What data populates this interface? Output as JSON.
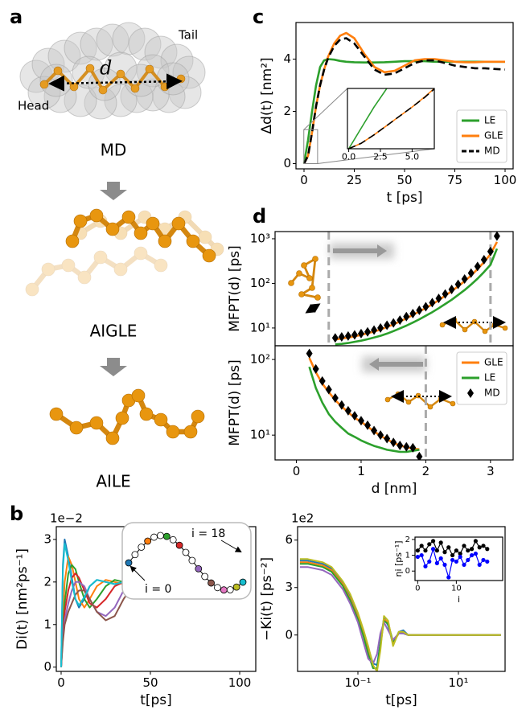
{
  "panel_labels": [
    "a",
    "b",
    "c",
    "d"
  ],
  "illustration": {
    "distance": "d",
    "tail": "Tail",
    "head": "Head",
    "stages": [
      "MD",
      "AIGLE",
      "AILE"
    ]
  },
  "chart_data": [
    {
      "type": "line",
      "xlabel": "t [ps]",
      "ylabel": "Δd(t) [nm²]",
      "x": [
        0,
        2,
        4,
        6,
        8,
        10,
        12,
        15,
        18,
        21,
        25,
        30,
        35,
        40,
        45,
        50,
        55,
        60,
        65,
        70,
        75,
        80,
        85,
        90,
        95,
        100
      ],
      "series": [
        {
          "name": "LE",
          "color": "#2ca02c",
          "values": [
            0,
            0.9,
            2.0,
            3.0,
            3.7,
            3.95,
            4.0,
            3.98,
            3.93,
            3.9,
            3.88,
            3.87,
            3.87,
            3.88,
            3.9,
            3.92,
            3.92,
            3.92,
            3.9,
            3.9,
            3.9,
            3.9,
            3.9,
            3.9,
            3.9,
            3.9
          ]
        },
        {
          "name": "GLE",
          "color": "#ff7f0e",
          "values": [
            0,
            0.3,
            1.2,
            2.2,
            3.0,
            3.6,
            4.1,
            4.6,
            4.9,
            5.0,
            4.8,
            4.2,
            3.7,
            3.5,
            3.55,
            3.75,
            3.95,
            4.0,
            4.0,
            3.95,
            3.9,
            3.88,
            3.88,
            3.9,
            3.9,
            3.9
          ]
        },
        {
          "name": "MD",
          "color": "#000000",
          "linestyle": "dashed",
          "values": [
            0,
            0.3,
            1.2,
            2.2,
            3.0,
            3.6,
            4.05,
            4.5,
            4.75,
            4.8,
            4.6,
            4.1,
            3.6,
            3.4,
            3.45,
            3.65,
            3.85,
            3.95,
            3.95,
            3.85,
            3.75,
            3.7,
            3.65,
            3.65,
            3.62,
            3.6
          ]
        }
      ],
      "xlim": [
        -4,
        104
      ],
      "ylim": [
        -0.2,
        5.4
      ],
      "xticks": [
        0,
        25,
        50,
        75,
        100
      ],
      "yticks": [
        0,
        2,
        4
      ],
      "legend": "lower right"
    },
    {
      "type": "line",
      "x": [
        0,
        1,
        2,
        3,
        4,
        5,
        6,
        6.75
      ],
      "series": [
        {
          "color": "#2ca02c",
          "values": [
            0,
            0.45,
            0.9,
            1.3,
            null,
            null,
            null,
            null
          ]
        },
        {
          "color": "#ff7f0e",
          "values": [
            0,
            0.12,
            0.3,
            0.5,
            0.7,
            0.9,
            1.12,
            1.3
          ]
        },
        {
          "color": "#000000",
          "linestyle": "dashed",
          "values": [
            0,
            0.12,
            0.3,
            0.5,
            0.7,
            0.9,
            1.11,
            1.29
          ]
        }
      ],
      "xlim": [
        -0.1,
        6.75
      ],
      "ylim": [
        0,
        1.3
      ],
      "xticks": [
        {
          "value": 0,
          "label": "0.0"
        },
        {
          "value": 2.5,
          "label": "2.5"
        },
        {
          "value": 5,
          "label": "5.0"
        }
      ]
    },
    {
      "type": "line",
      "ylabel": "MFPT(d) [ps]",
      "x": [
        0.6,
        0.7,
        0.8,
        0.9,
        1.0,
        1.1,
        1.2,
        1.3,
        1.4,
        1.5,
        1.6,
        1.7,
        1.8,
        1.9,
        2.0,
        2.1,
        2.2,
        2.3,
        2.4,
        2.5,
        2.6,
        2.7,
        2.8,
        2.9,
        3.0,
        3.1
      ],
      "series": [
        {
          "color": "#ff7f0e",
          "values": [
            5.5,
            5.8,
            6.1,
            6.5,
            7,
            7.6,
            8.3,
            9.2,
            10.5,
            12,
            14,
            16.5,
            19.5,
            23.5,
            28,
            34,
            42,
            53,
            67,
            86,
            112,
            150,
            210,
            300,
            450,
            850
          ]
        },
        {
          "color": "#2ca02c",
          "values": [
            4.3,
            4.4,
            4.6,
            4.9,
            5.2,
            5.6,
            6.1,
            6.7,
            7.5,
            8.5,
            9.8,
            11.3,
            13.2,
            15.7,
            18.8,
            22.7,
            27.8,
            34.5,
            43,
            55,
            71,
            94,
            128,
            180,
            260,
            600
          ]
        },
        {
          "color": "#000000",
          "marker": "diamond",
          "values": [
            6,
            6.3,
            6.6,
            7,
            7.5,
            8.2,
            9,
            10,
            11.5,
            13,
            15,
            18,
            21,
            25,
            30,
            37,
            46,
            58,
            73,
            95,
            125,
            170,
            240,
            340,
            520,
            1150
          ]
        }
      ],
      "xlim": [
        -0.33,
        3.35
      ],
      "ylim": [
        4,
        1450
      ],
      "yscale": "log",
      "yticks": [
        {
          "value": 10,
          "label": "10¹"
        },
        {
          "value": 100,
          "label": "10²"
        },
        {
          "value": 1000,
          "label": "10³"
        }
      ],
      "vlines": [
        0.5,
        3
      ]
    },
    {
      "type": "line",
      "xlabel": "d [nm]",
      "ylabel": "MFPT(d) [ps]",
      "x": [
        0.2,
        0.3,
        0.4,
        0.5,
        0.6,
        0.7,
        0.8,
        0.9,
        1.0,
        1.1,
        1.2,
        1.3,
        1.4,
        1.5,
        1.6,
        1.7,
        1.8,
        1.9
      ],
      "series": [
        {
          "name": "GLE",
          "color": "#ff7f0e",
          "values": [
            105,
            68,
            48,
            37,
            29,
            24,
            20,
            17,
            15,
            13,
            11.2,
            9.8,
            8.8,
            7.9,
            7.3,
            6.9,
            6.6,
            6.5
          ]
        },
        {
          "name": "LE",
          "color": "#2ca02c",
          "values": [
            80,
            42,
            27,
            19,
            15,
            12.5,
            10.5,
            9.5,
            8.5,
            7.8,
            7.2,
            6.8,
            6.4,
            6.2,
            6.0,
            6.0,
            6.2,
            6.4
          ]
        },
        {
          "name": "MD",
          "color": "#000000",
          "marker": "diamond",
          "values": [
            120,
            75,
            52,
            40,
            31,
            25,
            21,
            18,
            15.5,
            13.5,
            11.5,
            10,
            9,
            8,
            7.3,
            7,
            6.8,
            5.2
          ]
        }
      ],
      "xlim": [
        -0.33,
        3.35
      ],
      "ylim": [
        4.7,
        152
      ],
      "yscale": "log",
      "xticks": [
        0,
        1,
        2,
        3
      ],
      "yticks": [
        {
          "value": 10,
          "label": "10¹"
        },
        {
          "value": 100,
          "label": "10²"
        }
      ],
      "vlines": [
        2
      ],
      "legend": "upper right"
    },
    {
      "type": "line",
      "xlabel": "t[ps]",
      "ylabel": "Di(t) [nm²ps⁻¹]",
      "offset_label": "1e−2",
      "x": [
        0,
        1,
        2,
        4,
        6,
        8,
        10,
        13,
        16,
        20,
        25,
        30,
        35,
        40,
        45,
        50,
        55,
        60,
        70,
        80,
        90,
        100
      ],
      "series": [
        {
          "color": "#1f77b4",
          "values": [
            0,
            2.4,
            3.0,
            2.6,
            2.1,
            1.6,
            1.4,
            1.6,
            1.9,
            2.05,
            2.0,
            1.95,
            2.0,
            2.1,
            2.15,
            2.15,
            2.1,
            2.0,
            2.0,
            2.0,
            2.05,
            2.0
          ]
        },
        {
          "color": "#ff7f0e",
          "values": [
            0,
            1.2,
            2.0,
            2.6,
            2.4,
            2.0,
            1.6,
            1.4,
            1.6,
            1.9,
            2.05,
            2.0,
            1.95,
            2.05,
            2.15,
            2.2,
            2.15,
            2.05,
            2.0,
            2.0,
            2.0,
            2.0
          ]
        },
        {
          "color": "#2ca02c",
          "values": [
            0,
            0.9,
            1.5,
            2.2,
            2.4,
            2.3,
            2.0,
            1.6,
            1.4,
            1.6,
            1.9,
            2.05,
            2.0,
            2.05,
            2.1,
            2.2,
            2.2,
            2.1,
            2.0,
            2.0,
            2.0,
            2.0
          ]
        },
        {
          "color": "#d62728",
          "values": [
            0,
            0.8,
            1.3,
            1.8,
            2.1,
            2.2,
            2.1,
            1.8,
            1.5,
            1.4,
            1.6,
            1.9,
            2.0,
            2.05,
            2.1,
            2.2,
            2.2,
            2.1,
            2.0,
            2.0,
            2.0,
            2.0
          ]
        },
        {
          "color": "#9467bd",
          "values": [
            0,
            0.7,
            1.1,
            1.5,
            1.8,
            2.0,
            2.0,
            1.9,
            1.6,
            1.3,
            1.2,
            1.4,
            1.8,
            2.0,
            2.1,
            2.2,
            2.2,
            2.1,
            2.0,
            1.95,
            2.0,
            2.0
          ]
        },
        {
          "color": "#8c564b",
          "values": [
            0,
            0.6,
            1.0,
            1.3,
            1.5,
            1.7,
            1.8,
            1.8,
            1.6,
            1.3,
            1.1,
            1.2,
            1.6,
            1.9,
            2.1,
            2.2,
            2.2,
            2.1,
            2.0,
            1.95,
            2.0,
            2.0
          ]
        },
        {
          "color": "#17becf",
          "values": [
            0,
            2.3,
            2.9,
            2.5,
            2.0,
            1.6,
            1.45,
            1.65,
            1.9,
            2.05,
            2.0,
            1.95,
            2.0,
            2.1,
            2.15,
            2.15,
            2.1,
            2.0,
            2.0,
            2.0,
            2.05,
            2.05
          ]
        }
      ],
      "xlim": [
        -2.7,
        109
      ],
      "ylim": [
        -0.1,
        3.3
      ],
      "xticks": [
        0,
        50,
        100
      ],
      "yticks": [
        0,
        1,
        2,
        3
      ],
      "annotations": [
        "i = 0",
        "i = 18"
      ]
    },
    {
      "type": "line",
      "xlabel": "t[ps]",
      "ylabel": "−Ki(t) [ps⁻²]",
      "offset_label": "1e2",
      "xscale": "log",
      "x": [
        0.007,
        0.01,
        0.02,
        0.03,
        0.05,
        0.07,
        0.1,
        0.13,
        0.16,
        0.2,
        0.24,
        0.28,
        0.33,
        0.4,
        0.5,
        0.65,
        0.8,
        1,
        1.5,
        3,
        10,
        30,
        70
      ],
      "series": [
        {
          "color": "#1f77b4",
          "values": [
            4.7,
            4.7,
            4.5,
            4.2,
            3.3,
            2.5,
            1.3,
            0.2,
            -0.8,
            -1.8,
            -1.9,
            -0.5,
            1.1,
            0.6,
            -0.6,
            0.2,
            0.3,
            0,
            0,
            0,
            0,
            0,
            0
          ]
        },
        {
          "color": "#ff7f0e",
          "values": [
            4.6,
            4.6,
            4.4,
            4.1,
            3.2,
            2.3,
            1.1,
            0,
            -1.1,
            -2.0,
            -2.2,
            -0.8,
            1.0,
            0.8,
            -0.5,
            0.1,
            0.2,
            0,
            0,
            0,
            0,
            0,
            0
          ]
        },
        {
          "color": "#2ca02c",
          "values": [
            4.5,
            4.5,
            4.3,
            4.0,
            3.1,
            2.2,
            1.0,
            -0.1,
            -1.2,
            -2.1,
            -2.1,
            -0.6,
            0.9,
            0.7,
            -0.4,
            0.1,
            0.1,
            0,
            0,
            0,
            0,
            0,
            0
          ]
        },
        {
          "color": "#9467bd",
          "values": [
            4.3,
            4.3,
            4.1,
            3.8,
            2.9,
            2.0,
            0.8,
            -0.5,
            -1.5,
            -1.8,
            -1.2,
            0.1,
            0.8,
            0.3,
            -0.3,
            0.1,
            0.1,
            0,
            0,
            0,
            0,
            0,
            0
          ]
        },
        {
          "color": "#bcbd22",
          "values": [
            4.8,
            4.8,
            4.6,
            4.3,
            3.4,
            2.6,
            1.4,
            0.3,
            -0.7,
            -1.9,
            -2.3,
            -1.0,
            1.2,
            0.9,
            -0.7,
            0.2,
            0.2,
            0,
            0,
            0,
            0,
            0,
            0
          ]
        }
      ],
      "xlim": [
        0.0063,
        85
      ],
      "ylim": [
        -2.3,
        6.85
      ],
      "xticks": [
        {
          "value": 0.1,
          "label": "10⁻¹"
        },
        {
          "value": 10,
          "label": "10¹"
        }
      ],
      "yticks": [
        0,
        3,
        6
      ]
    },
    {
      "type": "line",
      "xlabel": "i",
      "ylabel": "ηi [ps⁻¹]",
      "x": [
        0,
        1,
        2,
        3,
        4,
        5,
        6,
        7,
        8,
        9,
        10,
        11,
        12,
        13,
        14,
        15,
        16,
        17,
        18
      ],
      "series": [
        {
          "color": "#000000",
          "marker": "circle",
          "values": [
            1.3,
            1.6,
            1.3,
            1.7,
            1.9,
            1.3,
            1.8,
            1.2,
            1.5,
            1.0,
            1.3,
            1.1,
            1.6,
            1.3,
            1.4,
            1.9,
            1.5,
            1.6,
            1.4
          ]
        },
        {
          "color": "#0000ff",
          "marker": "circle",
          "values": [
            0.9,
            1.0,
            0.3,
            0.6,
            1.4,
            0.5,
            0.8,
            0.4,
            -0.4,
            0.7,
            0.6,
            0.9,
            0.4,
            0.7,
            1.0,
            1.1,
            0.4,
            0.7,
            0.6
          ]
        }
      ],
      "xlim": [
        -0.7,
        22
      ],
      "ylim": [
        -0.6,
        2.15
      ],
      "xticks": [
        0,
        10
      ],
      "yticks": [
        0,
        1,
        2
      ]
    }
  ]
}
